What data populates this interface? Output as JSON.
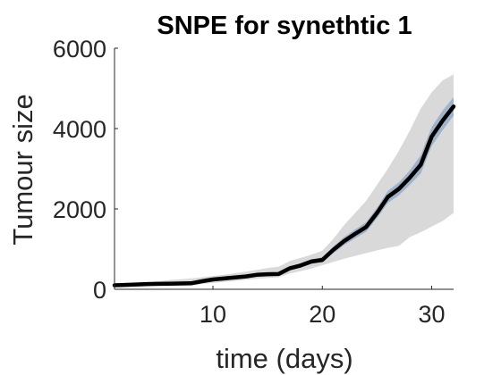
{
  "chart_data": {
    "type": "line",
    "title": "SNPE for synethtic 1",
    "xlabel": "time (days)",
    "ylabel": "Tumour size",
    "xlim": [
      1,
      32
    ],
    "ylim": [
      0,
      6000
    ],
    "xticks": [
      10,
      20,
      30
    ],
    "yticks": [
      0,
      2000,
      4000,
      6000
    ],
    "grid": false,
    "legend": "none",
    "colors": {
      "median_line": "#000000",
      "inner_band": "#6f93bd",
      "outer_band": "#d9d9d9"
    },
    "series": [
      {
        "x": [
          1,
          2,
          3,
          4,
          5,
          6,
          7,
          8,
          9,
          10,
          11,
          12,
          13,
          14,
          15,
          16,
          17,
          18,
          19,
          20,
          21,
          22,
          23,
          24,
          25,
          26,
          27,
          28,
          29,
          30,
          31,
          32
        ],
        "values": [
          100,
          110,
          120,
          130,
          135,
          140,
          145,
          150,
          200,
          245,
          270,
          295,
          320,
          360,
          375,
          380,
          520,
          590,
          690,
          730,
          980,
          1200,
          1380,
          1550,
          1900,
          2300,
          2500,
          2780,
          3100,
          3800,
          4200,
          4550
        ]
      },
      {
        "x": [
          1,
          2,
          3,
          4,
          5,
          6,
          7,
          8,
          9,
          10,
          11,
          12,
          13,
          14,
          15,
          16,
          17,
          18,
          19,
          20,
          21,
          22,
          23,
          24,
          25,
          26,
          27,
          28,
          29,
          30,
          31,
          32
        ],
        "lower": [
          85,
          95,
          105,
          115,
          120,
          125,
          128,
          130,
          175,
          215,
          240,
          265,
          290,
          325,
          340,
          345,
          470,
          535,
          630,
          670,
          900,
          1100,
          1270,
          1430,
          1770,
          2150,
          2340,
          2600,
          2880,
          3560,
          3960,
          4320
        ],
        "upper": [
          115,
          125,
          135,
          145,
          150,
          155,
          162,
          170,
          225,
          275,
          300,
          325,
          350,
          395,
          410,
          415,
          570,
          645,
          750,
          795,
          1060,
          1300,
          1490,
          1670,
          2030,
          2450,
          2660,
          2960,
          3340,
          4040,
          4450,
          4780
        ]
      },
      {
        "x": [
          1,
          2,
          3,
          4,
          5,
          6,
          7,
          8,
          9,
          10,
          11,
          12,
          13,
          14,
          15,
          16,
          17,
          18,
          19,
          20,
          21,
          22,
          23,
          24,
          25,
          26,
          27,
          28,
          29,
          30,
          31,
          32
        ],
        "lower": [
          60,
          65,
          70,
          75,
          80,
          85,
          90,
          95,
          130,
          160,
          185,
          210,
          235,
          260,
          280,
          300,
          390,
          450,
          520,
          600,
          680,
          760,
          830,
          900,
          970,
          1030,
          1080,
          1300,
          1420,
          1560,
          1700,
          1900
        ],
        "upper": [
          150,
          160,
          170,
          180,
          200,
          230,
          250,
          270,
          300,
          330,
          360,
          400,
          440,
          480,
          530,
          560,
          700,
          780,
          860,
          960,
          1250,
          1600,
          1900,
          2200,
          2600,
          3000,
          3450,
          3950,
          4500,
          4900,
          5200,
          5350
        ]
      }
    ]
  }
}
